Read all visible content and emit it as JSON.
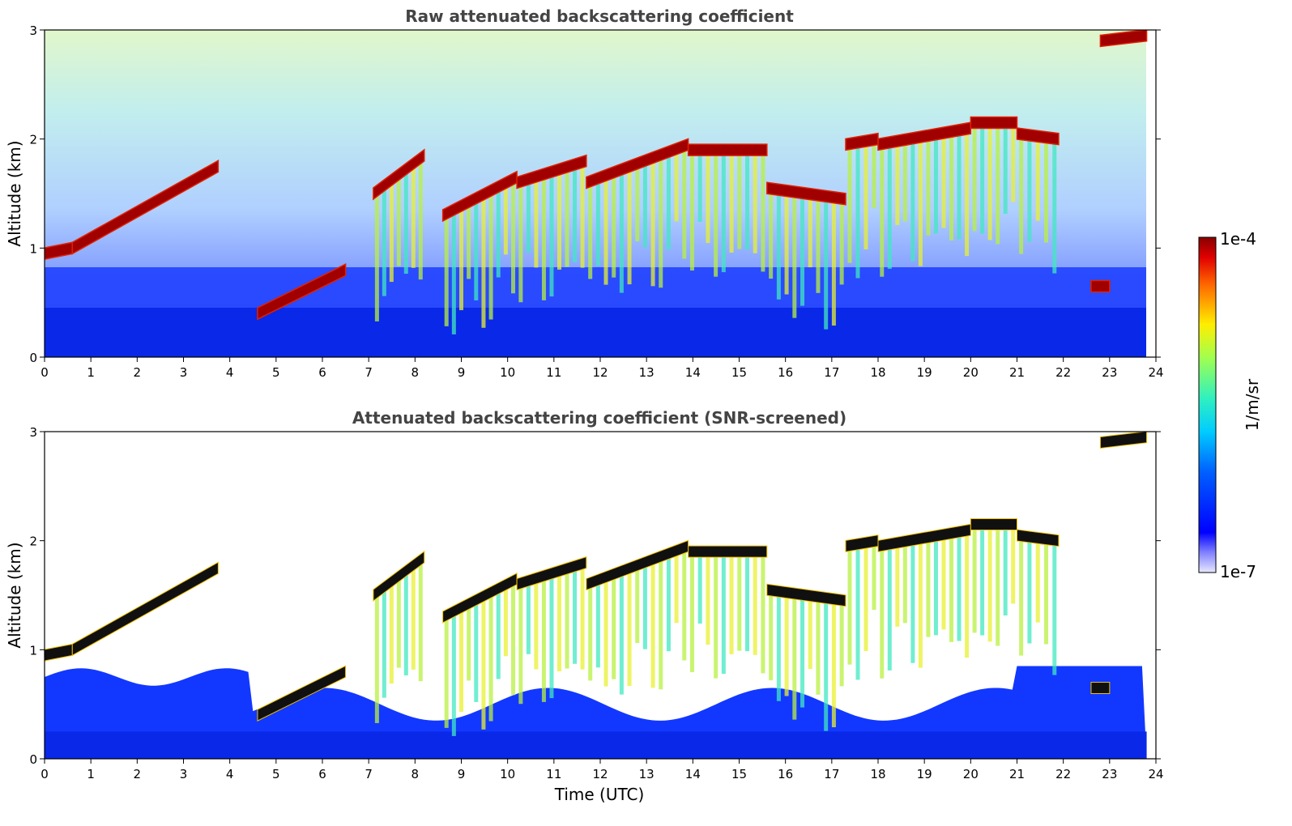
{
  "chart_data": [
    {
      "type": "heatmap",
      "title": "Raw attenuated backscattering coefficient",
      "ylabel": "Altitude (km)",
      "xlabel": "",
      "xlim": [
        0,
        24
      ],
      "ylim": [
        0,
        3
      ],
      "x_ticks": [
        "0",
        "1",
        "2",
        "3",
        "4",
        "5",
        "6",
        "7",
        "8",
        "9",
        "10",
        "11",
        "12",
        "13",
        "14",
        "15",
        "16",
        "17",
        "18",
        "19",
        "20",
        "21",
        "22",
        "23",
        "24"
      ],
      "y_ticks": [
        "0",
        "1",
        "2",
        "3"
      ],
      "cloud_layers": [
        {
          "t_start": 0.0,
          "t_end": 0.6,
          "alt_start": 0.95,
          "alt_end": 1.0
        },
        {
          "t_start": 0.6,
          "t_end": 3.75,
          "alt_start": 1.0,
          "alt_end": 1.75
        },
        {
          "t_start": 4.6,
          "t_end": 6.5,
          "alt_start": 0.4,
          "alt_end": 0.8
        },
        {
          "t_start": 7.1,
          "t_end": 8.2,
          "alt_start": 1.5,
          "alt_end": 1.85
        },
        {
          "t_start": 8.6,
          "t_end": 10.2,
          "alt_start": 1.3,
          "alt_end": 1.65
        },
        {
          "t_start": 10.2,
          "t_end": 11.7,
          "alt_start": 1.6,
          "alt_end": 1.8
        },
        {
          "t_start": 11.7,
          "t_end": 13.9,
          "alt_start": 1.6,
          "alt_end": 1.95
        },
        {
          "t_start": 13.9,
          "t_end": 15.6,
          "alt_start": 1.9,
          "alt_end": 1.9
        },
        {
          "t_start": 15.6,
          "t_end": 17.3,
          "alt_start": 1.55,
          "alt_end": 1.45
        },
        {
          "t_start": 17.3,
          "t_end": 18.0,
          "alt_start": 1.95,
          "alt_end": 2.0
        },
        {
          "t_start": 18.0,
          "t_end": 20.0,
          "alt_start": 1.95,
          "alt_end": 2.1
        },
        {
          "t_start": 20.0,
          "t_end": 21.0,
          "alt_start": 2.15,
          "alt_end": 2.15
        },
        {
          "t_start": 21.0,
          "t_end": 21.9,
          "alt_start": 2.05,
          "alt_end": 2.0
        },
        {
          "t_start": 22.6,
          "t_end": 23.0,
          "alt_start": 0.65,
          "alt_end": 0.65
        },
        {
          "t_start": 22.8,
          "t_end": 23.8,
          "alt_start": 2.9,
          "alt_end": 2.95
        }
      ]
    },
    {
      "type": "heatmap",
      "title": "Attenuated backscattering coefficient (SNR-screened)",
      "ylabel": "Altitude (km)",
      "xlabel": "Time (UTC)",
      "xlim": [
        0,
        24
      ],
      "ylim": [
        0,
        3
      ],
      "x_ticks": [
        "0",
        "1",
        "2",
        "3",
        "4",
        "5",
        "6",
        "7",
        "8",
        "9",
        "10",
        "11",
        "12",
        "13",
        "14",
        "15",
        "16",
        "17",
        "18",
        "19",
        "20",
        "21",
        "22",
        "23",
        "24"
      ],
      "y_ticks": [
        "0",
        "1",
        "2",
        "3"
      ]
    }
  ],
  "colorbar": {
    "label": "1/m/sr",
    "max_label": "1e-4",
    "min_label": "1e-7",
    "scale": "log",
    "colormap": "jet"
  },
  "colors": {
    "title_text": "#444444",
    "axis": "#000000"
  }
}
